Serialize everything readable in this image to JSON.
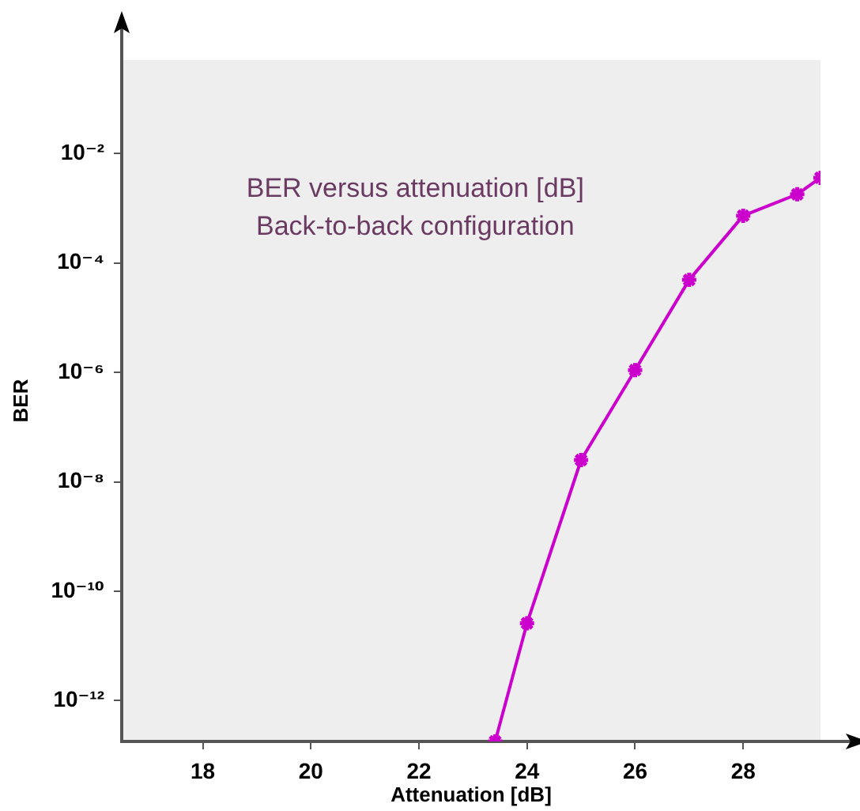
{
  "chart_data": {
    "type": "line",
    "title": "BER versus attenuation [dB]",
    "subtitle": "Back-to-back configuration",
    "xlabel": "Attenuation [dB]",
    "ylabel": "BER",
    "series": [
      {
        "color": "#cc00cc",
        "x": [
          23.41,
          24,
          25,
          26,
          27,
          28,
          29,
          29.43
        ],
        "values": [
          1.8e-13,
          2.6e-11,
          2.5e-08,
          1.1e-06,
          4.9e-05,
          0.00073,
          0.0018,
          0.0036
        ]
      }
    ],
    "xlim": [
      16.5,
      29.43
    ],
    "xticks": [
      18,
      20,
      22,
      24,
      26,
      28
    ],
    "ylim": [
      1.8e-13,
      0.51
    ],
    "yticks": [
      {
        "value": 1e-12,
        "label": "10⁻¹²"
      },
      {
        "value": 1e-10,
        "label": "10⁻¹⁰"
      },
      {
        "value": 1e-08,
        "label": "10⁻⁸"
      },
      {
        "value": 1e-06,
        "label": "10⁻⁶"
      },
      {
        "value": 0.0001,
        "label": "10⁻⁴"
      },
      {
        "value": 0.01,
        "label": "10⁻²"
      }
    ],
    "log": "y",
    "grid": false,
    "legend": false,
    "marker": "cross",
    "line_style": "solid"
  }
}
